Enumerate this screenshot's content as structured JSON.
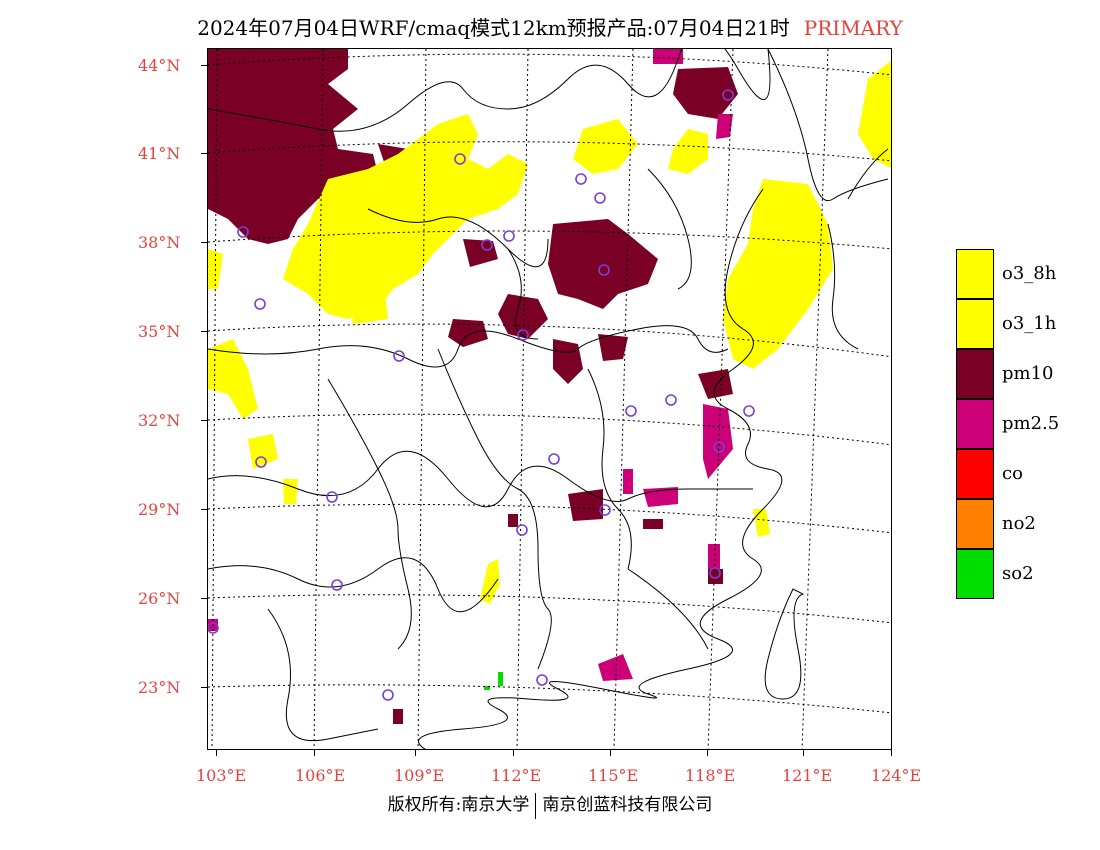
{
  "title": {
    "main": "2024年07月04日WRF/cmaq模式12km预报产品:07月04日21时",
    "tag": "PRIMARY"
  },
  "latitude_labels": [
    "44°N",
    "41°N",
    "38°N",
    "35°N",
    "32°N",
    "29°N",
    "26°N",
    "23°N"
  ],
  "longitude_labels": [
    "103°E",
    "106°E",
    "109°E",
    "112°E",
    "115°E",
    "118°E",
    "121°E",
    "124°E"
  ],
  "legend": [
    {
      "label": "o3_8h",
      "color": "#ffff00"
    },
    {
      "label": "o3_1h",
      "color": "#ffff00"
    },
    {
      "label": "pm10",
      "color": "#7a0026"
    },
    {
      "label": "pm2.5",
      "color": "#cc0077"
    },
    {
      "label": "co",
      "color": "#ff0000"
    },
    {
      "label": "no2",
      "color": "#ff7f00"
    },
    {
      "label": "so2",
      "color": "#00dd00"
    }
  ],
  "copyright": {
    "left": "版权所有:南京大学",
    "right": "南京创蓝科技有限公司"
  },
  "colors": {
    "axis_label": "#e8413c",
    "marker_circle": "#7a3fd6"
  }
}
